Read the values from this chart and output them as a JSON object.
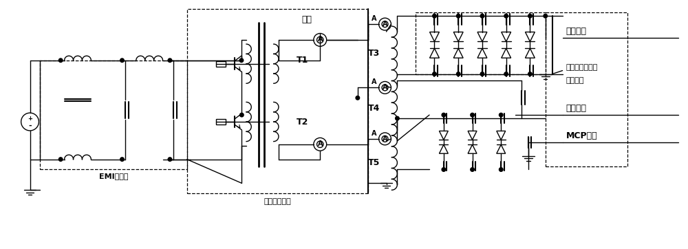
{
  "bg_color": "#ffffff",
  "labels": {
    "emi": "EMI滤波器",
    "bead": "磁珠",
    "core": "罐型屏蔽磁芯",
    "t1": "T1",
    "t2": "T2",
    "t3": "T3",
    "t4": "T4",
    "t5": "T5",
    "A": "A",
    "anode": "阳极电压",
    "diode_module_1": "二极管倍压组合",
    "diode_module_2": "集成模块",
    "cathode": "阴极电压",
    "mcp": "MCP电压"
  },
  "figsize": [
    10.0,
    3.62
  ],
  "dpi": 100
}
